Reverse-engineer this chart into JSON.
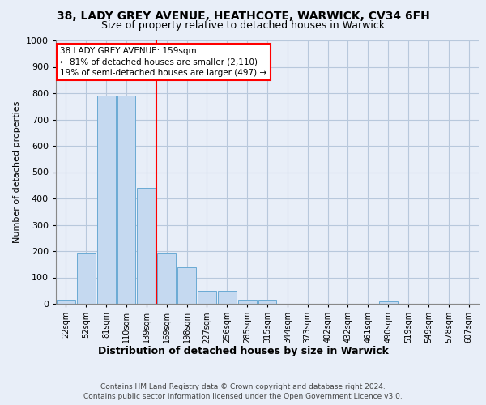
{
  "title_line1": "38, LADY GREY AVENUE, HEATHCOTE, WARWICK, CV34 6FH",
  "title_line2": "Size of property relative to detached houses in Warwick",
  "xlabel": "Distribution of detached houses by size in Warwick",
  "ylabel": "Number of detached properties",
  "footer": "Contains HM Land Registry data © Crown copyright and database right 2024.\nContains public sector information licensed under the Open Government Licence v3.0.",
  "categories": [
    "22sqm",
    "52sqm",
    "81sqm",
    "110sqm",
    "139sqm",
    "169sqm",
    "198sqm",
    "227sqm",
    "256sqm",
    "285sqm",
    "315sqm",
    "344sqm",
    "373sqm",
    "402sqm",
    "432sqm",
    "461sqm",
    "490sqm",
    "519sqm",
    "549sqm",
    "578sqm",
    "607sqm"
  ],
  "values": [
    15,
    195,
    790,
    790,
    440,
    195,
    140,
    50,
    50,
    15,
    15,
    0,
    0,
    0,
    0,
    0,
    10,
    0,
    0,
    0,
    0
  ],
  "bar_color": "#c5d9f0",
  "bar_edge_color": "#6aaad4",
  "red_line_x": 4.5,
  "annotation_text": "38 LADY GREY AVENUE: 159sqm\n← 81% of detached houses are smaller (2,110)\n19% of semi-detached houses are larger (497) →",
  "annotation_box_color": "white",
  "annotation_box_edge": "red",
  "ylim": [
    0,
    1000
  ],
  "yticks": [
    0,
    100,
    200,
    300,
    400,
    500,
    600,
    700,
    800,
    900,
    1000
  ],
  "background_color": "#e8eef8",
  "plot_bg_color": "#e8eef8",
  "grid_color": "#b8c8dc"
}
